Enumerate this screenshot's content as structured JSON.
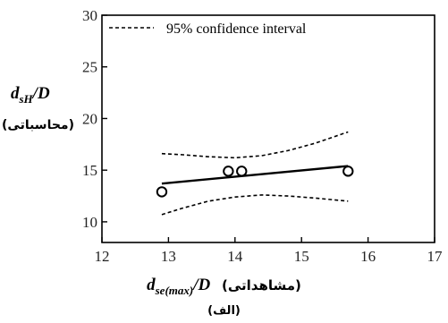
{
  "chart_data": {
    "type": "scatter",
    "xlabel_main": "d_se(max)/D",
    "xlabel_note": "(مشاهداتی)",
    "ylabel_main": "d_sH/D",
    "ylabel_note": "(محاسباتی)",
    "caption": "(الف)",
    "xlim": [
      12,
      17
    ],
    "ylim": [
      8,
      30
    ],
    "x_ticks": [
      12,
      13,
      14,
      15,
      16,
      17
    ],
    "y_ticks": [
      10,
      15,
      20,
      25,
      30
    ],
    "grid": false,
    "legend": {
      "position": "top-left",
      "label": "95% confidence interval",
      "style": "dashed"
    },
    "points": [
      {
        "x": 12.9,
        "y": 12.9
      },
      {
        "x": 13.9,
        "y": 14.9
      },
      {
        "x": 14.1,
        "y": 14.9
      },
      {
        "x": 15.7,
        "y": 14.9
      }
    ],
    "fit_line": {
      "x": [
        12.9,
        15.7
      ],
      "y": [
        13.7,
        15.4
      ]
    },
    "ci_upper": {
      "x": [
        12.9,
        13.2,
        13.6,
        14.0,
        14.4,
        14.8,
        15.2,
        15.7
      ],
      "y": [
        16.6,
        16.5,
        16.3,
        16.2,
        16.4,
        16.9,
        17.6,
        18.7
      ]
    },
    "ci_lower": {
      "x": [
        12.9,
        13.2,
        13.6,
        14.0,
        14.4,
        14.8,
        15.2,
        15.7
      ],
      "y": [
        10.7,
        11.3,
        12.0,
        12.4,
        12.6,
        12.5,
        12.3,
        12.0
      ]
    }
  }
}
